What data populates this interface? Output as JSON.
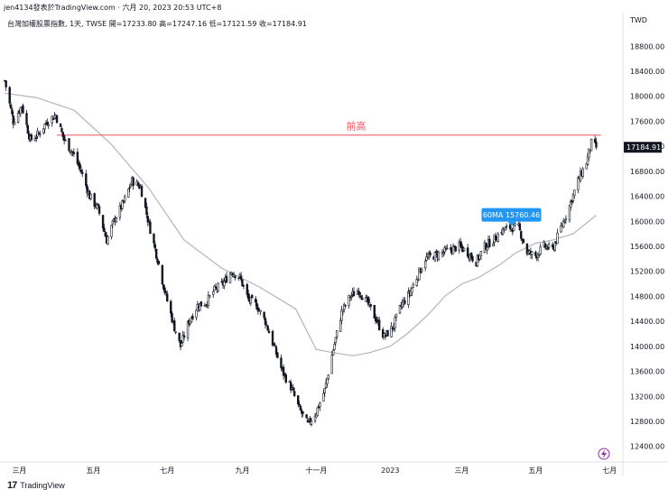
{
  "header": {
    "publisher": "jen4134發表於TradingView.com",
    "timestamp": "六月 20, 2023 20:53 UTC+8",
    "separator": "·",
    "symbol_line": "台灣加權股票指數, 1天, TWSE",
    "ohlc": "開=17233.80 高=17247.16 低=17121.59 收=17184.91"
  },
  "footer": {
    "logo": "17",
    "brand": "TradingView"
  },
  "colors": {
    "candle": "#131722",
    "ma": "#b2b5be",
    "resistance": "#f7525f",
    "ma_badge": "#2196f3",
    "price_badge": "#131722",
    "axis_text": "#131722"
  },
  "chart_data": {
    "type": "candlestick",
    "currency": "TWD",
    "y_ticks": [
      12400,
      12800,
      13200,
      13600,
      14000,
      14400,
      14800,
      15200,
      15600,
      16000,
      16400,
      16800,
      17200,
      17600,
      18000,
      18400,
      18800
    ],
    "y_tick_labels": [
      "12400.00",
      "12800.00",
      "13200.00",
      "13600.00",
      "14000.00",
      "14400.00",
      "14800.00",
      "15200.00",
      "15600.00",
      "16000.00",
      "16400.00",
      "16800.00",
      "17200.00",
      "17600.00",
      "18000.00",
      "18400.00",
      "18800.00"
    ],
    "ylim": [
      12150,
      19050
    ],
    "x_labels": [
      {
        "date": "2022-03-01",
        "label": "三月"
      },
      {
        "date": "2022-05-01",
        "label": "五月"
      },
      {
        "date": "2022-07-01",
        "label": "七月"
      },
      {
        "date": "2022-09-01",
        "label": "九月"
      },
      {
        "date": "2022-11-01",
        "label": "十一月"
      },
      {
        "date": "2023-01-01",
        "label": "2023"
      },
      {
        "date": "2023-03-01",
        "label": "三月"
      },
      {
        "date": "2023-05-01",
        "label": "五月"
      },
      {
        "date": "2023-07-01",
        "label": "七月"
      }
    ],
    "x_range": [
      "2022-02-16",
      "2023-07-12"
    ],
    "series": [
      {
        "name": "close",
        "points": [
          [
            "2022-02-17",
            18250
          ],
          [
            "2022-02-24",
            17600
          ],
          [
            "2022-03-03",
            17850
          ],
          [
            "2022-03-10",
            17300
          ],
          [
            "2022-03-17",
            17400
          ],
          [
            "2022-03-24",
            17600
          ],
          [
            "2022-03-31",
            17700
          ],
          [
            "2022-04-07",
            17300
          ],
          [
            "2022-04-14",
            17100
          ],
          [
            "2022-04-21",
            16800
          ],
          [
            "2022-04-28",
            16400
          ],
          [
            "2022-05-05",
            16200
          ],
          [
            "2022-05-12",
            15700
          ],
          [
            "2022-05-19",
            16050
          ],
          [
            "2022-05-26",
            16300
          ],
          [
            "2022-06-02",
            16650
          ],
          [
            "2022-06-09",
            16550
          ],
          [
            "2022-06-16",
            15950
          ],
          [
            "2022-06-23",
            15400
          ],
          [
            "2022-06-30",
            14800
          ],
          [
            "2022-07-07",
            14300
          ],
          [
            "2022-07-12",
            14000
          ],
          [
            "2022-07-19",
            14400
          ],
          [
            "2022-07-26",
            14650
          ],
          [
            "2022-08-02",
            14700
          ],
          [
            "2022-08-09",
            14900
          ],
          [
            "2022-08-16",
            15000
          ],
          [
            "2022-08-23",
            15200
          ],
          [
            "2022-08-30",
            15100
          ],
          [
            "2022-09-06",
            14750
          ],
          [
            "2022-09-13",
            14650
          ],
          [
            "2022-09-20",
            14400
          ],
          [
            "2022-09-27",
            14000
          ],
          [
            "2022-10-04",
            13600
          ],
          [
            "2022-10-11",
            13350
          ],
          [
            "2022-10-18",
            13000
          ],
          [
            "2022-10-25",
            12750
          ],
          [
            "2022-11-01",
            12950
          ],
          [
            "2022-11-08",
            13300
          ],
          [
            "2022-11-15",
            13950
          ],
          [
            "2022-11-22",
            14550
          ],
          [
            "2022-11-29",
            14800
          ],
          [
            "2022-12-06",
            14900
          ],
          [
            "2022-12-13",
            14700
          ],
          [
            "2022-12-20",
            14450
          ],
          [
            "2022-12-27",
            14150
          ],
          [
            "2023-01-03",
            14300
          ],
          [
            "2023-01-10",
            14650
          ],
          [
            "2023-01-17",
            14850
          ],
          [
            "2023-01-30",
            15400
          ],
          [
            "2023-02-06",
            15450
          ],
          [
            "2023-02-13",
            15500
          ],
          [
            "2023-02-20",
            15550
          ],
          [
            "2023-02-27",
            15600
          ],
          [
            "2023-03-06",
            15500
          ],
          [
            "2023-03-13",
            15350
          ],
          [
            "2023-03-20",
            15600
          ],
          [
            "2023-03-27",
            15700
          ],
          [
            "2023-04-03",
            15850
          ],
          [
            "2023-04-10",
            15900
          ],
          [
            "2023-04-17",
            15900
          ],
          [
            "2023-04-24",
            15500
          ],
          [
            "2023-05-01",
            15450
          ],
          [
            "2023-05-08",
            15600
          ],
          [
            "2023-05-15",
            15550
          ],
          [
            "2023-05-22",
            15900
          ],
          [
            "2023-05-29",
            16250
          ],
          [
            "2023-06-05",
            16650
          ],
          [
            "2023-06-12",
            16950
          ],
          [
            "2023-06-16",
            17250
          ],
          [
            "2023-06-20",
            17185
          ]
        ]
      },
      {
        "name": "60MA",
        "points": [
          [
            "2022-02-17",
            18050
          ],
          [
            "2022-03-15",
            17980
          ],
          [
            "2022-04-15",
            17780
          ],
          [
            "2022-05-15",
            17250
          ],
          [
            "2022-06-15",
            16550
          ],
          [
            "2022-07-15",
            15700
          ],
          [
            "2022-08-15",
            15250
          ],
          [
            "2022-09-15",
            14950
          ],
          [
            "2022-10-15",
            14600
          ],
          [
            "2022-11-01",
            13950
          ],
          [
            "2022-11-15",
            13900
          ],
          [
            "2022-12-01",
            13850
          ],
          [
            "2022-12-15",
            13900
          ],
          [
            "2023-01-01",
            14000
          ],
          [
            "2023-01-15",
            14200
          ],
          [
            "2023-02-01",
            14500
          ],
          [
            "2023-02-15",
            14800
          ],
          [
            "2023-03-01",
            15000
          ],
          [
            "2023-03-15",
            15100
          ],
          [
            "2023-04-01",
            15300
          ],
          [
            "2023-04-15",
            15500
          ],
          [
            "2023-05-01",
            15650
          ],
          [
            "2023-05-15",
            15700
          ],
          [
            "2023-06-01",
            15800
          ],
          [
            "2023-06-20",
            16100
          ]
        ]
      }
    ],
    "resistance": {
      "value": 17380,
      "label": "前高",
      "from": "2022-04-01",
      "to": "2023-06-24"
    },
    "last_price": {
      "value": 17184.91,
      "label": "17184.91"
    },
    "ma_badge": {
      "label": "60MA",
      "value": "15760.46",
      "at": "2023-04-11",
      "price": 15895
    }
  }
}
